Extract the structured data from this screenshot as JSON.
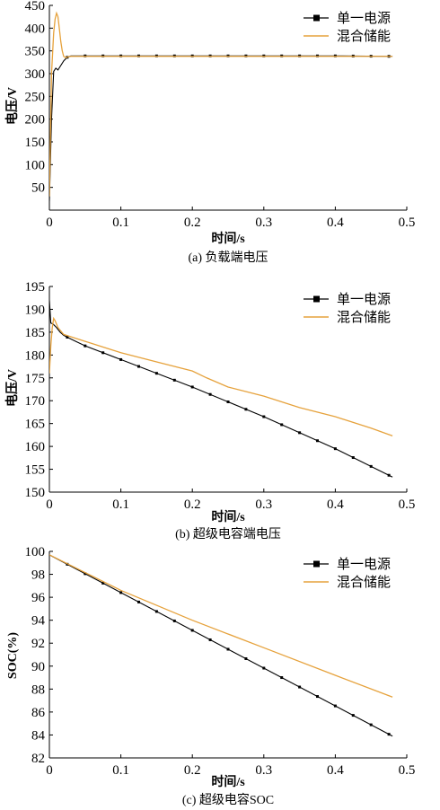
{
  "colors": {
    "single": "#000000",
    "hybrid": "#E6A23C",
    "axis": "#000000"
  },
  "chart_data": [
    {
      "type": "line",
      "caption": "(a) 负载端电压",
      "xlabel": "时间/s",
      "ylabel": "电压/V",
      "xlim": [
        0,
        0.5
      ],
      "ylim": [
        0,
        450
      ],
      "xticks": [
        "0",
        "0.1",
        "0.2",
        "0.3",
        "0.4",
        "0.5"
      ],
      "yticks": [
        "50",
        "100",
        "150",
        "200",
        "250",
        "300",
        "350",
        "400",
        "450"
      ],
      "legend_position": "top-right",
      "series": [
        {
          "name": "单一电源",
          "marker": "square",
          "x": [
            0,
            0.003,
            0.006,
            0.009,
            0.012,
            0.016,
            0.02,
            0.025,
            0.03,
            0.04,
            0.06,
            0.1,
            0.2,
            0.3,
            0.4,
            0.48
          ],
          "y": [
            20,
            200,
            305,
            312,
            308,
            318,
            328,
            336,
            339,
            339,
            339,
            339,
            339,
            339,
            339,
            338
          ]
        },
        {
          "name": "混合储能",
          "marker": "none",
          "x": [
            0,
            0.003,
            0.006,
            0.008,
            0.01,
            0.012,
            0.014,
            0.016,
            0.018,
            0.02,
            0.023,
            0.026,
            0.03,
            0.04,
            0.1,
            0.2,
            0.3,
            0.4,
            0.48
          ],
          "y": [
            30,
            300,
            390,
            420,
            433,
            425,
            398,
            370,
            350,
            338,
            335,
            337,
            338,
            338,
            338,
            338,
            338,
            338,
            338
          ]
        }
      ]
    },
    {
      "type": "line",
      "caption": "(b) 超级电容端电压",
      "xlabel": "时间/s",
      "ylabel": "电压/V",
      "xlim": [
        0,
        0.5
      ],
      "ylim": [
        150,
        195
      ],
      "xticks": [
        "0",
        "0.1",
        "0.2",
        "0.3",
        "0.4",
        "0.5"
      ],
      "yticks": [
        "150",
        "155",
        "160",
        "165",
        "170",
        "175",
        "180",
        "185",
        "190",
        "195"
      ],
      "legend_position": "top-right",
      "series": [
        {
          "name": "单一电源",
          "marker": "square",
          "x": [
            0,
            0.002,
            0.005,
            0.01,
            0.015,
            0.02,
            0.03,
            0.05,
            0.1,
            0.2,
            0.3,
            0.4,
            0.48
          ],
          "y": [
            192,
            187,
            186.8,
            186,
            185,
            184.3,
            183.5,
            182,
            179,
            173,
            166.5,
            159.5,
            153.3
          ]
        },
        {
          "name": "混合储能",
          "marker": "none",
          "x": [
            0,
            0.002,
            0.004,
            0.006,
            0.008,
            0.012,
            0.02,
            0.03,
            0.05,
            0.1,
            0.15,
            0.2,
            0.22,
            0.25,
            0.3,
            0.35,
            0.4,
            0.45,
            0.48
          ],
          "y": [
            176,
            182,
            186,
            188,
            187.5,
            186,
            184.5,
            184,
            183,
            180.5,
            178.5,
            176.5,
            175,
            173,
            171,
            168.5,
            166.5,
            164,
            162.3
          ]
        }
      ]
    },
    {
      "type": "line",
      "caption": "(c) 超级电容SOC",
      "xlabel": "时间/s",
      "ylabel": "SOC(%)",
      "xlim": [
        0,
        0.5
      ],
      "ylim": [
        82,
        100
      ],
      "xticks": [
        "0",
        "0.1",
        "0.2",
        "0.3",
        "0.4",
        "0.5"
      ],
      "yticks": [
        "82",
        "84",
        "86",
        "88",
        "90",
        "92",
        "94",
        "96",
        "98",
        "100"
      ],
      "legend_position": "top-right",
      "series": [
        {
          "name": "单一电源",
          "marker": "square",
          "x": [
            0,
            0.48
          ],
          "y": [
            99.7,
            83.9
          ]
        },
        {
          "name": "混合储能",
          "marker": "none",
          "x": [
            0,
            0.1,
            0.2,
            0.3,
            0.4,
            0.48
          ],
          "y": [
            99.7,
            96.6,
            94.0,
            91.6,
            89.2,
            87.3
          ]
        }
      ]
    }
  ]
}
